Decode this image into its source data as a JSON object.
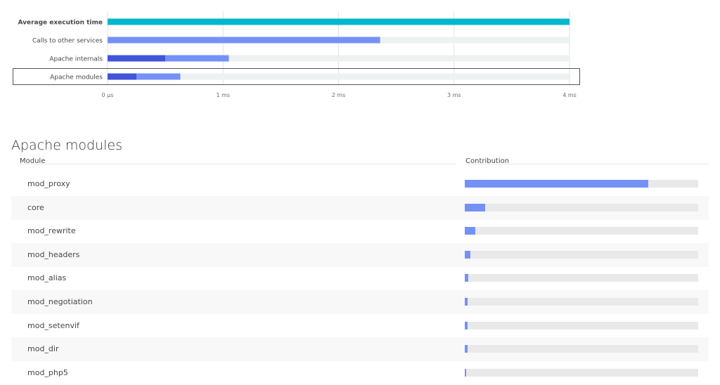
{
  "chart_data": [
    {
      "type": "bar",
      "orientation": "horizontal",
      "stacked": true,
      "categories": [
        "Average execution time",
        "Calls to other services",
        "Apache internals",
        "Apache modules"
      ],
      "series": [
        {
          "values": [
            4.0,
            2.36,
            0.5,
            0.25
          ],
          "color_hint": "primary"
        },
        {
          "values": [
            0,
            0,
            0.55,
            0.38
          ],
          "color_hint": "secondary"
        }
      ],
      "bar_colors": {
        "Average execution time": [
          "#00b7cc"
        ],
        "Calls to other services": [
          "#7491f6"
        ],
        "Apache internals": [
          "#4254d9",
          "#7491f6"
        ],
        "Apache modules": [
          "#4254d9",
          "#7491f6"
        ]
      },
      "x_ticks": [
        0,
        1,
        2,
        3,
        4
      ],
      "x_tick_labels": [
        "0 µs",
        "1 ms",
        "2 ms",
        "3 ms",
        "4 ms"
      ],
      "xlim": [
        0,
        4.0
      ],
      "grid": true,
      "highlighted_category": "Apache modules"
    },
    {
      "type": "bar",
      "orientation": "horizontal",
      "categories": [
        "mod_proxy",
        "core",
        "mod_rewrite",
        "mod_headers",
        "mod_alias",
        "mod_negotiation",
        "mod_setenvif",
        "mod_dir",
        "mod_php5"
      ],
      "values": [
        0.785,
        0.087,
        0.045,
        0.024,
        0.016,
        0.013,
        0.011,
        0.011,
        0.004
      ],
      "xlim": [
        0,
        1
      ]
    }
  ],
  "colors": {
    "teal": "#00b7cc",
    "blue": "#7491f6",
    "dark_blue": "#4254d9",
    "track": "#eef1f1"
  },
  "section_title": "Apache modules",
  "table_headers": {
    "module": "Module",
    "contribution": "Contribution"
  }
}
